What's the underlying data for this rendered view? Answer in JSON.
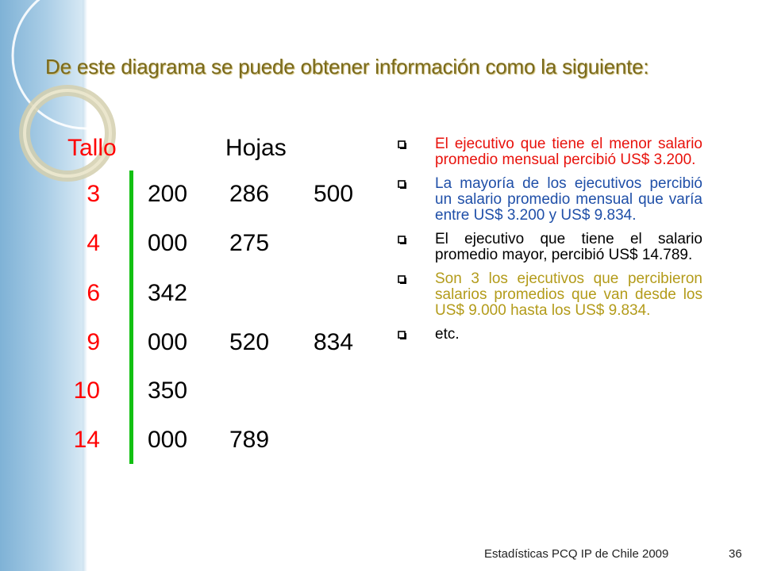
{
  "title": "De este diagrama se puede obtener información como la siguiente:",
  "table": {
    "stem_header": "Tallo",
    "leaf_header": "Hojas",
    "rows": [
      {
        "stem": "3",
        "leaves": [
          "200",
          "286",
          "500"
        ]
      },
      {
        "stem": "4",
        "leaves": [
          "000",
          "275",
          ""
        ]
      },
      {
        "stem": "6",
        "leaves": [
          "342",
          "",
          ""
        ]
      },
      {
        "stem": "9",
        "leaves": [
          "000",
          "520",
          "834"
        ]
      },
      {
        "stem": "10",
        "leaves": [
          "350",
          "",
          ""
        ]
      },
      {
        "stem": "14",
        "leaves": [
          "000",
          "789",
          ""
        ]
      }
    ]
  },
  "bullets": [
    {
      "text": "El ejecutivo que tiene el menor salario promedio mensual percibió US$ 3.200.",
      "color": "#e8120c"
    },
    {
      "text": "La mayoría de los ejecutivos percibió un salario promedio mensual que varía entre US$ 3.200 y US$ 9.834.",
      "color": "#1f4fa8"
    },
    {
      "text": "El ejecutivo que tiene el salario promedio mayor, percibió US$ 14.789.",
      "color": "#000000"
    },
    {
      "text": "Son 3 los ejecutivos que percibieron salarios promedios que van desde los US$ 9.000 hasta los US$ 9.834.",
      "color": "#b39b1a"
    },
    {
      "text": "etc.",
      "color": "#000000"
    }
  ],
  "bullet_icon": "hollow-square-icon",
  "footer": "Estadísticas PCQ IP de Chile 2009",
  "page_number": "36",
  "colors": {
    "stem_line": "#12c012",
    "stem_text": "#ff0000",
    "title_text": "#7a6a1c",
    "sidebar": "#a9cde6"
  }
}
